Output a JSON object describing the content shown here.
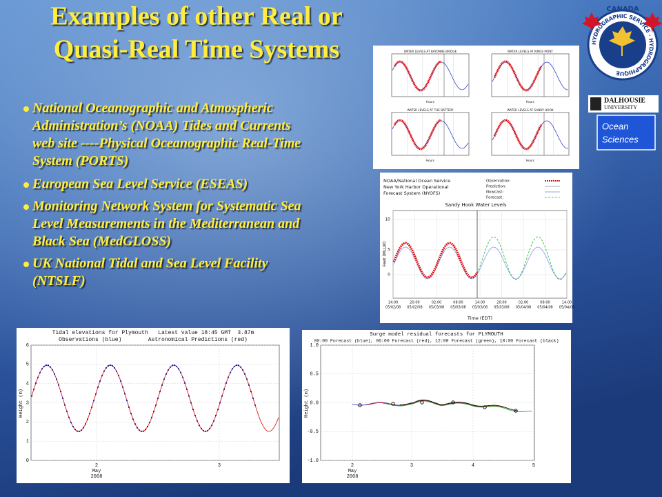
{
  "title": {
    "lines": [
      "Examples of other Real or",
      "Quasi-Real Time Systems"
    ]
  },
  "bullets": [
    [
      "National Oceanographic and Atmospheric",
      "Administration’s (NOAA) Tides and Currents",
      "web site ----Physical Oceanographic Real-Time",
      "System (PORTS)"
    ],
    [
      "European Sea Level Service (ESEAS)"
    ],
    [
      "Monitoring Network System for Systematic Sea",
      "Level Measurements in the Mediterranean and",
      "Black Sea (MedGLOSS)"
    ],
    [
      "UK National Tidal and Sea Level Facility",
      "(NTSLF)"
    ]
  ],
  "logos": {
    "canada": "CANADA",
    "hydrographic": "HYDROGRAPHIC SERVICE · HYDROGRAPHIQUE",
    "dalhousie": [
      "DALHOUSIE",
      "UNIVERSITY"
    ],
    "ocean_sciences": [
      "Ocean",
      "Sciences"
    ]
  },
  "ports_panel": {
    "titles": [
      "WATER LEVELS AT BAYONNE BRIDGE",
      "WATER LEVELS AT KINGS POINT",
      "WATER LEVELS AT THE BATTERY",
      "WATER LEVELS AT SANDY HOOK"
    ],
    "x_label": "Hours"
  },
  "nyofs_panel": {
    "header": [
      "NOAA/National Ocean Service",
      "New York Harbor Operational",
      "Forecast System (NYOFS)"
    ],
    "legend": [
      "Observation:",
      "Prediction:",
      "Nowcast:",
      "Forecast:"
    ],
    "title": "Sandy Hook Water Levels",
    "y_label": "Feet (MLLW)",
    "y_ticks": [
      "10",
      "5",
      "0"
    ],
    "x_ticks": [
      {
        "time": "14:00",
        "date": "05/02/08"
      },
      {
        "time": "20:00",
        "date": "05/02/08"
      },
      {
        "time": "02:00",
        "date": "05/03/08"
      },
      {
        "time": "08:00",
        "date": "05/03/08"
      },
      {
        "time": "14:00",
        "date": "05/03/08"
      },
      {
        "time": "20:00",
        "date": "05/03/08"
      },
      {
        "time": "02:00",
        "date": "05/04/08"
      },
      {
        "time": "08:00",
        "date": "05/04/08"
      },
      {
        "time": "14:00",
        "date": "05/04/08"
      }
    ],
    "x_label": "Time (EDT)"
  },
  "plymouth_tide": {
    "title": "Tidal elevations for Plymouth   Latest value 18:45 GMT  3.87m",
    "subtitle": "Observations (blue)        Astronomical Predictions (red)",
    "y_label": "Height (m)",
    "y_ticks": [
      "0",
      "1",
      "2",
      "3",
      "4",
      "5",
      "6"
    ],
    "x_ticks": [
      "2",
      "3"
    ],
    "x_sub": [
      "May",
      "2008"
    ]
  },
  "plymouth_surge": {
    "title": "Surge model residual forecasts for PLYMOUTH",
    "subtitle": "00:00 Forecast (blue), 06:00 Forecast (red), 12:00 Forecast (green), 18:00 Forecast (black)",
    "y_label": "Height (m)",
    "y_ticks": [
      "1.0",
      "0.5",
      "0.0",
      "-0.5",
      "-1.0"
    ],
    "x_ticks": [
      "2",
      "3",
      "4",
      "5"
    ],
    "x_sub": [
      "May",
      "2008"
    ]
  }
}
